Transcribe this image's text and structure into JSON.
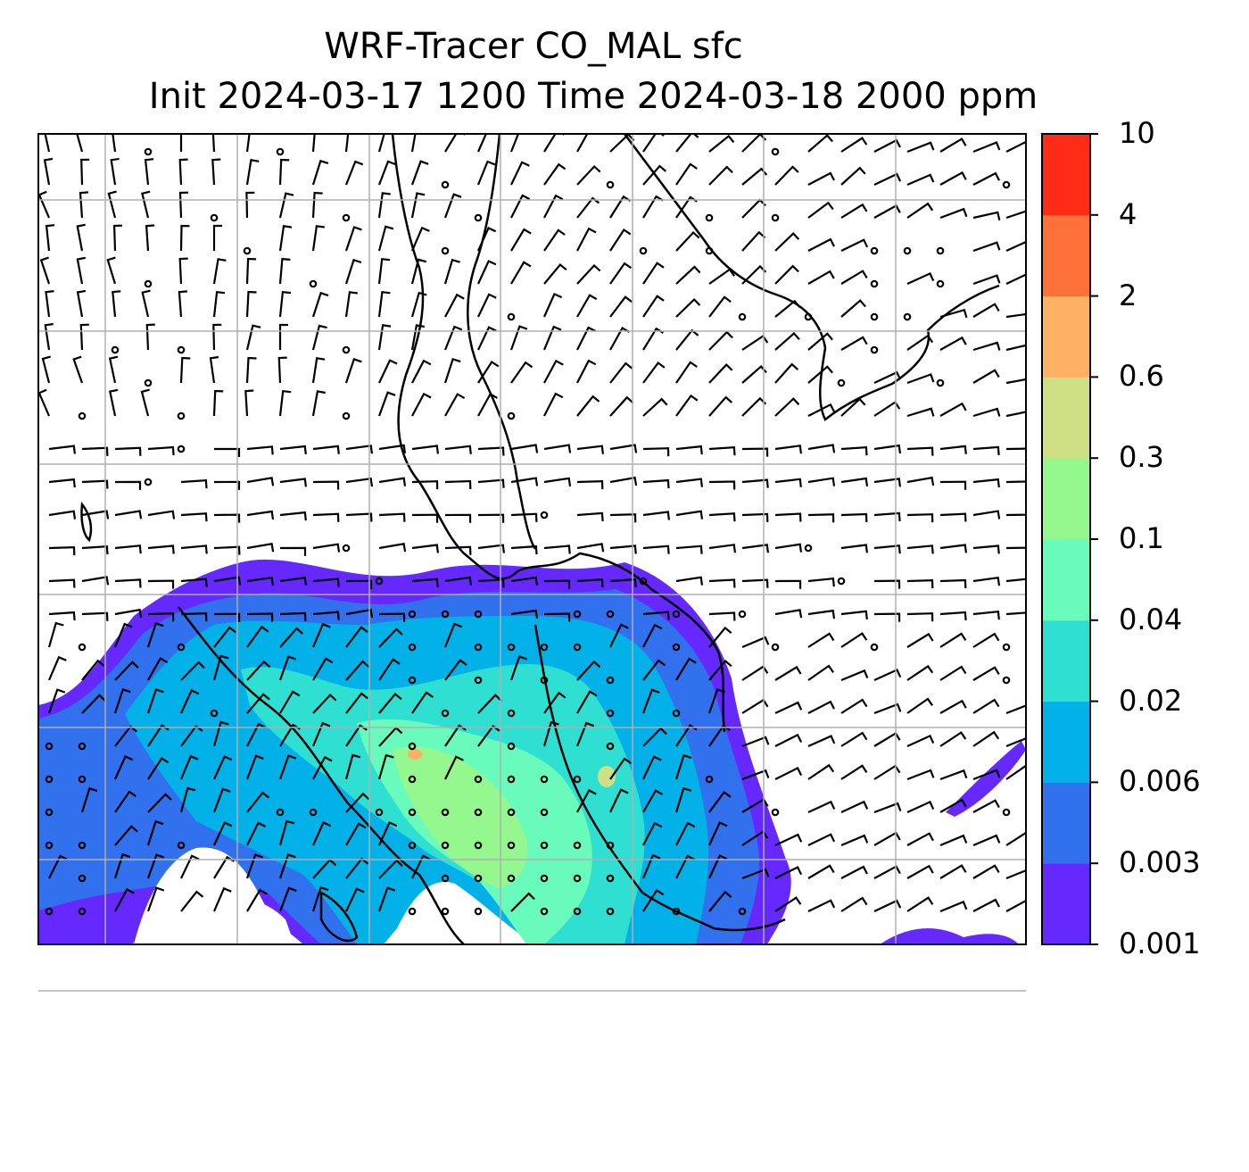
{
  "title": {
    "line1": "WRF-Tracer CO_MAL sfc",
    "line2": "Init 2024-03-17 1200 Time 2024-03-18 2000 ppm"
  },
  "colorbar": {
    "levels": [
      "0.001",
      "0.003",
      "0.006",
      "0.02",
      "0.04",
      "0.1",
      "0.3",
      "0.6",
      "2",
      "4",
      "10"
    ],
    "colors": [
      "#6528ff",
      "#3171ee",
      "#01b1e8",
      "#2fdfd2",
      "#68fbbc",
      "#94f88f",
      "#cfe084",
      "#feb164",
      "#fe7139",
      "#fe2b16"
    ]
  },
  "map": {
    "contour_field": "CO_MAL surface tracer",
    "wind_symbols": "wind barbs and calm circles",
    "grid": "on"
  }
}
